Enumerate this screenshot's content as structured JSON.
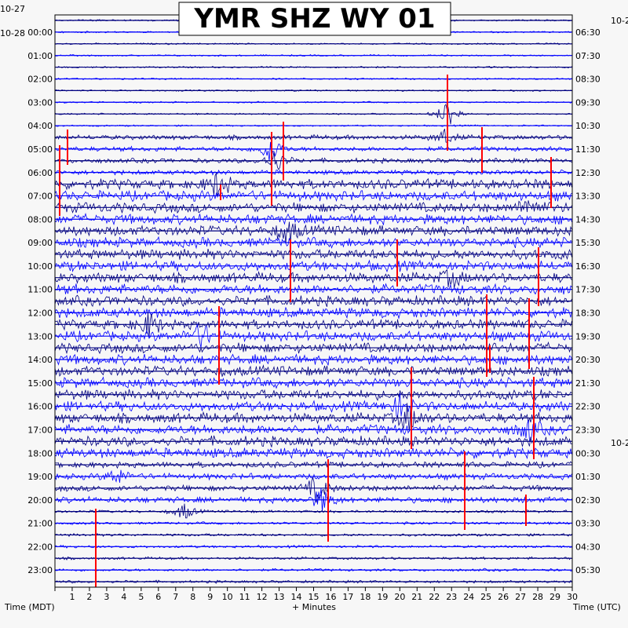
{
  "chart_data": {
    "type": "line",
    "title": "YMR SHZ WY 01",
    "left_axis_title": "Time (MDT)",
    "bottom_axis_title": "+ Minutes",
    "right_axis_title": "Time (UTC)",
    "left_date_top": "10-27",
    "left_date_second": "10-28",
    "right_date_top": "10-2",
    "right_date_mid": "10-2",
    "x_ticks": [
      "1",
      "2",
      "3",
      "4",
      "5",
      "6",
      "7",
      "8",
      "9",
      "10",
      "11",
      "12",
      "13",
      "14",
      "15",
      "16",
      "17",
      "18",
      "19",
      "20",
      "21",
      "22",
      "23",
      "24",
      "25",
      "26",
      "27",
      "28",
      "29",
      "30"
    ],
    "xlim": [
      0,
      30
    ],
    "left_hour_labels": [
      "00:00",
      "01:00",
      "02:00",
      "03:00",
      "04:00",
      "05:00",
      "06:00",
      "07:00",
      "08:00",
      "09:00",
      "10:00",
      "11:00",
      "12:00",
      "13:00",
      "14:00",
      "15:00",
      "16:00",
      "17:00",
      "18:00",
      "19:00",
      "20:00",
      "21:00",
      "22:00",
      "23:00"
    ],
    "right_hour_labels": [
      "06:30",
      "07:30",
      "08:30",
      "09:30",
      "10:30",
      "11:30",
      "12:30",
      "13:30",
      "14:30",
      "15:30",
      "16:30",
      "17:30",
      "18:30",
      "19:30",
      "20:30",
      "21:30",
      "22:30",
      "23:30",
      "00:30",
      "01:30",
      "02:30",
      "03:30",
      "04:30",
      "05:30"
    ],
    "trace_count": 49,
    "trace_colors": [
      "#000080",
      "#0000ff"
    ],
    "clip_color": "#ff0000",
    "grid": true
  }
}
